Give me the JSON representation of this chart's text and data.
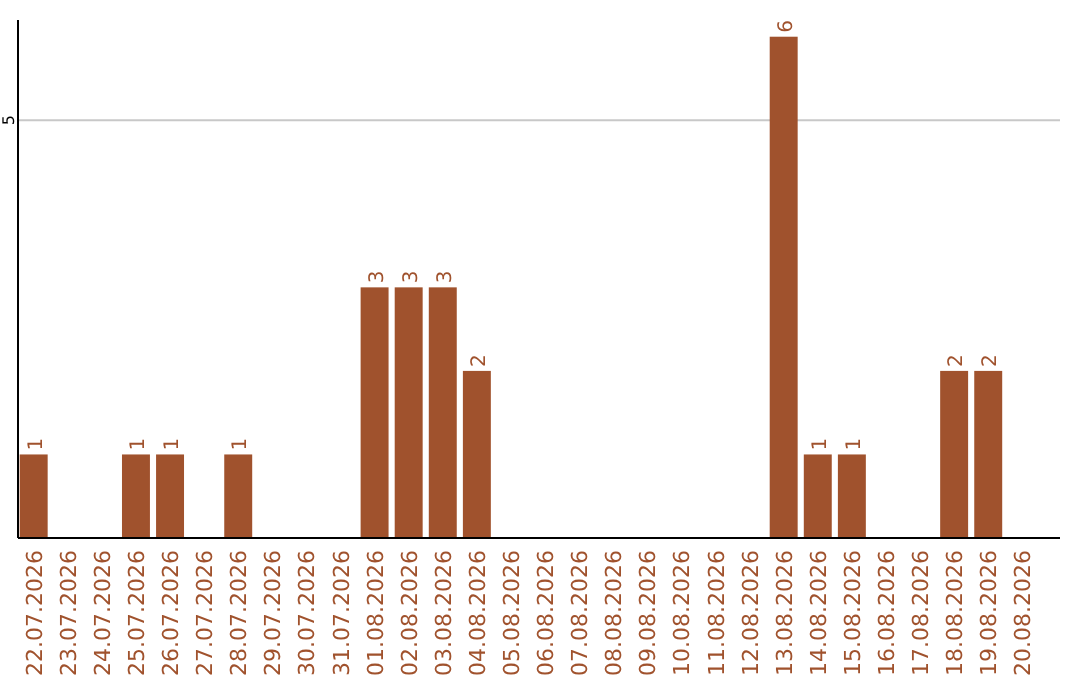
{
  "chart_data": {
    "type": "bar",
    "categories": [
      "22.07.2026",
      "23.07.2026",
      "24.07.2026",
      "25.07.2026",
      "26.07.2026",
      "27.07.2026",
      "28.07.2026",
      "29.07.2026",
      "30.07.2026",
      "31.07.2026",
      "01.08.2026",
      "02.08.2026",
      "03.08.2026",
      "04.08.2026",
      "05.08.2026",
      "06.08.2026",
      "07.08.2026",
      "08.08.2026",
      "09.08.2026",
      "10.08.2026",
      "11.08.2026",
      "12.08.2026",
      "13.08.2026",
      "14.08.2026",
      "15.08.2026",
      "16.08.2026",
      "17.08.2026",
      "18.08.2026",
      "19.08.2026",
      "20.08.2026"
    ],
    "values": [
      1,
      0,
      0,
      1,
      1,
      0,
      1,
      0,
      0,
      0,
      3,
      3,
      3,
      2,
      0,
      0,
      0,
      0,
      0,
      0,
      0,
      0,
      6,
      1,
      1,
      0,
      0,
      2,
      2,
      0
    ],
    "value_labels": [
      "1",
      null,
      null,
      "1",
      "1",
      null,
      "1",
      null,
      null,
      null,
      "3",
      "3",
      "3",
      "2",
      null,
      null,
      null,
      null,
      null,
      null,
      null,
      null,
      "6",
      "1",
      "1",
      null,
      null,
      "2",
      "2",
      null
    ],
    "color": "#a0522d",
    "ylim": [
      0,
      6.2
    ],
    "yticks": [
      5
    ],
    "grid": "y"
  }
}
